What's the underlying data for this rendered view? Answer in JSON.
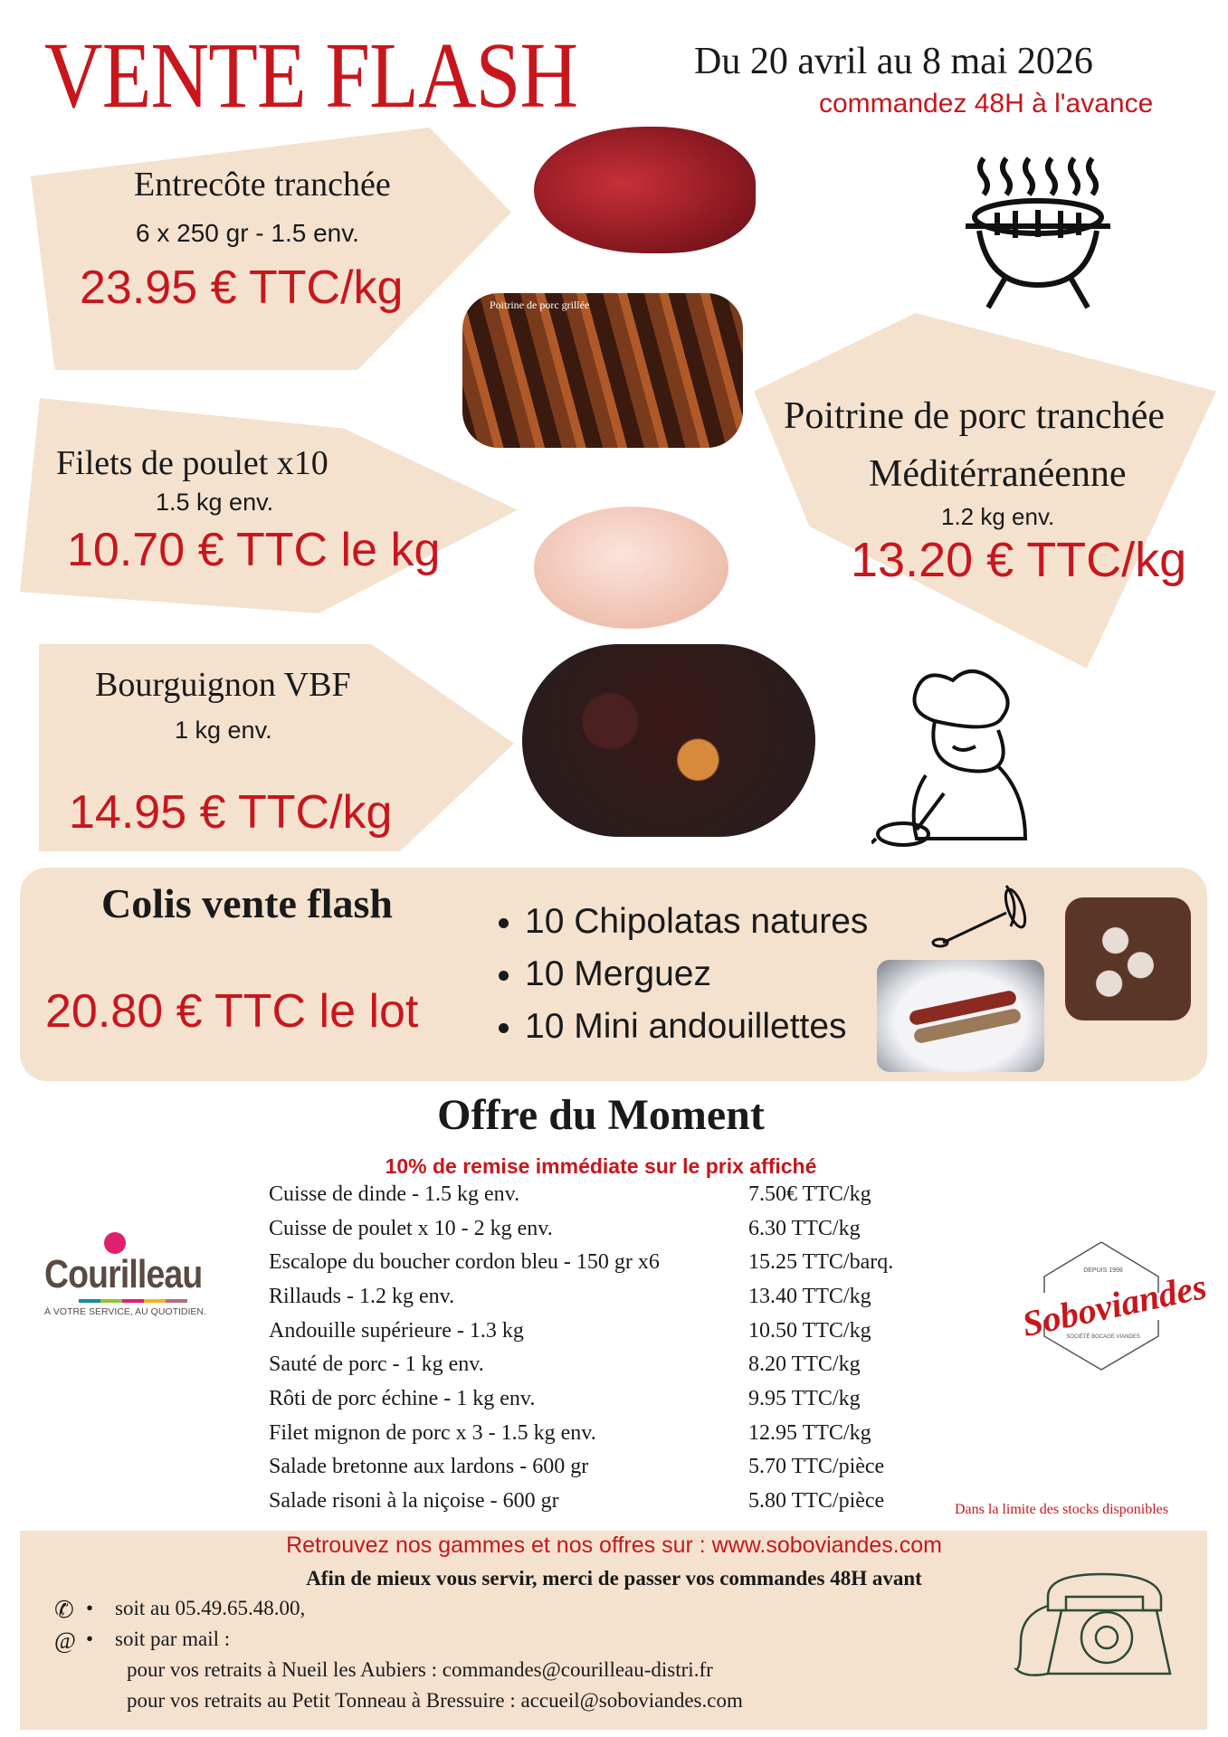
{
  "header": {
    "title": "VENTE FLASH",
    "dates": "Du 20 avril au 8 mai 2026",
    "notice": "commandez 48H à l'avance"
  },
  "products": [
    {
      "name": "Entrecôte tranchée",
      "detail": "6 x 250 gr - 1.5 env.",
      "price": "23.95 € TTC/kg"
    },
    {
      "name": "Filets de poulet x10",
      "detail": "1.5 kg env.",
      "price": "10.70 € TTC le kg"
    },
    {
      "name": "Poitrine de porc tranchée",
      "name2": "Méditérranéenne",
      "detail": "1.2 kg env.",
      "price": "13.20 € TTC/kg",
      "photo_caption": "Poitrine de porc grillée"
    },
    {
      "name": "Bourguignon VBF",
      "detail": "1 kg env.",
      "price": "14.95 € TTC/kg"
    }
  ],
  "colis": {
    "title": "Colis vente flash",
    "price": "20.80 € TTC le lot",
    "items": [
      "10 Chipolatas natures",
      "10 Merguez",
      "10 Mini andouillettes"
    ]
  },
  "offer": {
    "title": "Offre du Moment",
    "subtitle": "10% de remise immédiate sur le prix affiché",
    "rows": [
      {
        "item": "Cuisse de dinde - 1.5 kg env.",
        "price": "7.50€ TTC/kg"
      },
      {
        "item": "Cuisse de poulet x 10 - 2 kg  env.",
        "price": "6.30 TTC/kg"
      },
      {
        "item": "Escalope du boucher cordon bleu - 150 gr x6",
        "price": "15.25 TTC/barq."
      },
      {
        "item": "Rillauds - 1.2 kg env.",
        "price": "13.40 TTC/kg"
      },
      {
        "item": "Andouille supérieure - 1.3 kg",
        "price": "10.50 TTC/kg"
      },
      {
        "item": "Sauté de porc - 1 kg env.",
        "price": "8.20 TTC/kg"
      },
      {
        "item": "Rôti de porc échine - 1 kg env.",
        "price": "9.95 TTC/kg"
      },
      {
        "item": "Filet mignon de porc x 3 - 1.5 kg env.",
        "price": "12.95 TTC/kg"
      },
      {
        "item": "Salade bretonne aux lardons - 600 gr",
        "price": "5.70 TTC/pièce"
      },
      {
        "item": "Salade risoni à la niçoise - 600 gr",
        "price": "5.80 TTC/pièce"
      }
    ],
    "stock_note": "Dans la limite des stocks disponibles"
  },
  "logos": {
    "courilleau": "Courilleau",
    "courilleau_tagline": "À VOTRE SERVICE, AU QUOTIDIEN.",
    "soboviandes": "Soboviandes",
    "sobo_top": "DEPUIS 1998",
    "sobo_bottom": "SOCIÉTÉ BOCAGE VIANDES"
  },
  "footer": {
    "website": "Retrouvez nos gammes et nos offres sur : www.soboviandes.com",
    "intro": "Afin de mieux vous servir, merci de passer vos commandes 48H avant",
    "phone": "soit au 05.49.65.48.00,",
    "mail": "soit par mail :",
    "mail1": "pour vos retraits à Nueil les Aubiers : commandes@courilleau-distri.fr",
    "mail2": "pour vos retraits au Petit Tonneau à Bressuire : accueil@soboviandes.com"
  },
  "colors": {
    "red": "#c8161d",
    "beige": "#f4e2cf"
  }
}
